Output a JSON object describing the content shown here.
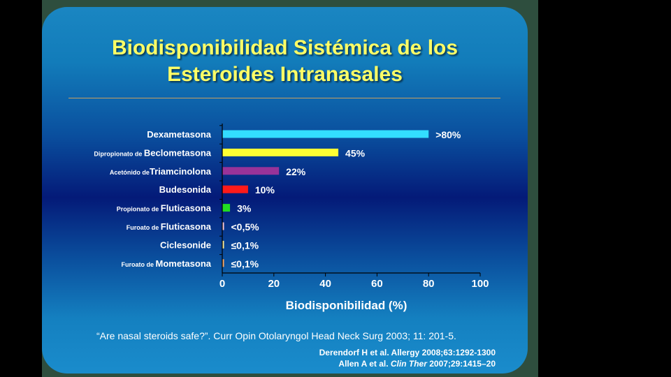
{
  "slide": {
    "title_line1": "Biodisponibilidad Sistémica de los",
    "title_line2": "Esteroides Intranasales",
    "citation": "“Are nasal steroids safe?”. Curr Opin Otolaryngol Head Neck Surg 2003; 11: 201-5.",
    "ref1": "Derendorf H et al. Allergy 2008;63:1292-1300",
    "ref2_prefix": "Allen A et al. ",
    "ref2_journal": "Clin Ther",
    "ref2_suffix": " 2007;29:1415–20"
  },
  "chart_data": {
    "type": "bar",
    "orientation": "horizontal",
    "xlabel": "Biodisponibilidad (%)",
    "xlim": [
      0,
      100
    ],
    "xticks": [
      0,
      20,
      40,
      60,
      80,
      100
    ],
    "categories": [
      {
        "prefix": "",
        "name": "Dexametasona",
        "value": 80,
        "label": ">80%",
        "color": "#33ddff"
      },
      {
        "prefix": "Dipropionato de ",
        "name": "Beclometasona",
        "value": 45,
        "label": "45%",
        "color": "#ffff33"
      },
      {
        "prefix": "Acetónido de",
        "name": "Triamcinolona",
        "value": 22,
        "label": "22%",
        "color": "#993399"
      },
      {
        "prefix": "",
        "name": "Budesonida",
        "value": 10,
        "label": "10%",
        "color": "#ff1a1a"
      },
      {
        "prefix": "Propionato de ",
        "name": "Fluticasona",
        "value": 3,
        "label": "3%",
        "color": "#22dd22"
      },
      {
        "prefix": "Furoato de ",
        "name": "Fluticasona",
        "value": 0.5,
        "label": "<0,5%",
        "color": "#ffccdd"
      },
      {
        "prefix": "",
        "name": "Ciclesonide",
        "value": 0.1,
        "label": "≤0,1%",
        "color": "#ffee99"
      },
      {
        "prefix": "Furoato de ",
        "name": "Mometasona",
        "value": 0.1,
        "label": "≤0,1%",
        "color": "#ffaa66"
      }
    ]
  }
}
